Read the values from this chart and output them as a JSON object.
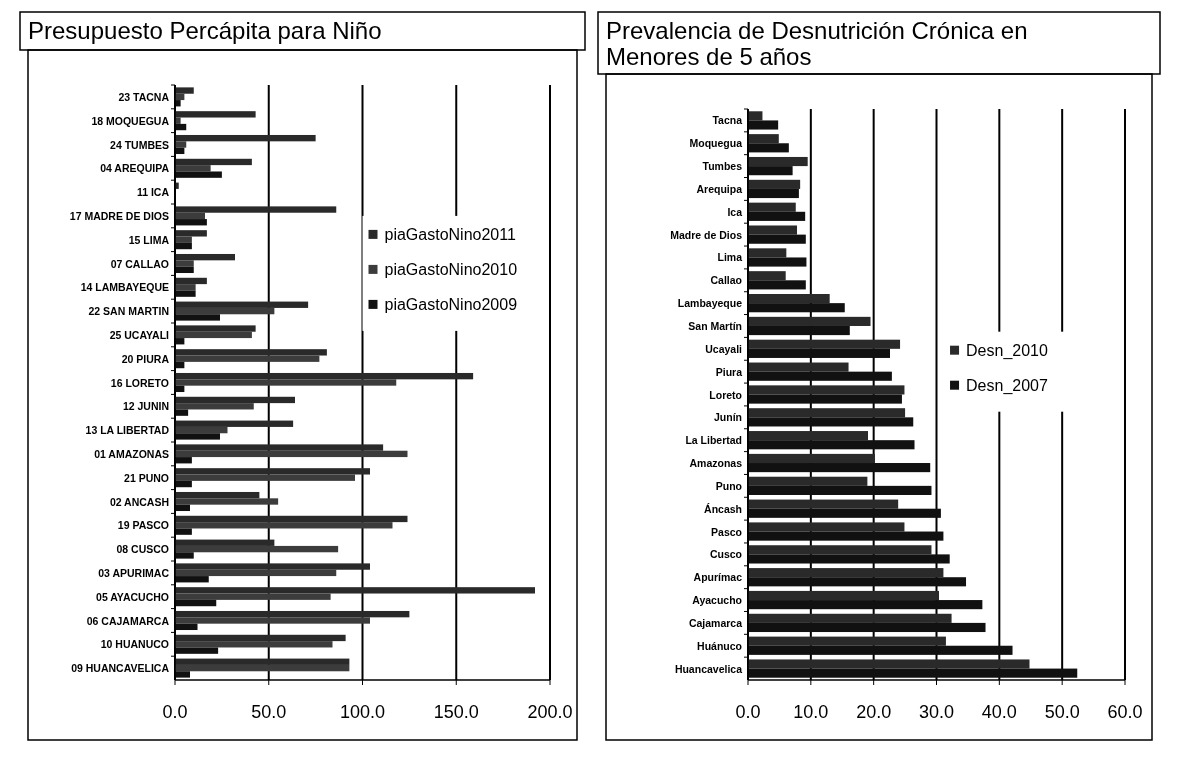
{
  "chart_data": [
    {
      "type": "bar",
      "orientation": "horizontal",
      "title": "Presupuesto Percápita para Niño",
      "categories": [
        "23 TACNA",
        "18 MOQUEGUA",
        "24 TUMBES",
        "04 AREQUIPA",
        "11 ICA",
        "17 MADRE DE DIOS",
        "15 LIMA",
        "07 CALLAO",
        "14 LAMBAYEQUE",
        "22 SAN MARTIN",
        "25 UCAYALI",
        "20 PIURA",
        "16 LORETO",
        "12 JUNIN",
        "13 LA LIBERTAD",
        "01 AMAZONAS",
        "21 PUNO",
        "02 ANCASH",
        "19 PASCO",
        "08 CUSCO",
        "03 APURIMAC",
        "05 AYACUCHO",
        "06 CAJAMARCA",
        "10 HUANUCO",
        "09 HUANCAVELICA"
      ],
      "series": [
        {
          "name": "piaGastoNino2011",
          "color": "#2a2a2a",
          "values": [
            10,
            43,
            75,
            41,
            2,
            86,
            17,
            32,
            17,
            71,
            43,
            81,
            159,
            64,
            63,
            111,
            104,
            45,
            124,
            53,
            104,
            192,
            125,
            91,
            93
          ]
        },
        {
          "name": "piaGastoNino2010",
          "color": "#3c3c3c",
          "values": [
            5,
            3,
            6,
            19,
            null,
            16,
            9,
            10,
            11,
            53,
            41,
            77,
            118,
            42,
            28,
            124,
            96,
            55,
            116,
            87,
            86,
            83,
            104,
            84,
            93
          ]
        },
        {
          "name": "piaGastoNino2009",
          "color": "#111111",
          "values": [
            3,
            6,
            5,
            25,
            null,
            17,
            9,
            10,
            11,
            24,
            5,
            5,
            5,
            7,
            24,
            9,
            9,
            8,
            9,
            10,
            18,
            22,
            12,
            23,
            8
          ]
        }
      ],
      "xlim": [
        0,
        200
      ],
      "xticks": [
        {
          "value": 0,
          "label": "0.0"
        },
        {
          "value": 50,
          "label": "50.0"
        },
        {
          "value": 100,
          "label": "100.0"
        },
        {
          "value": 150,
          "label": "150.0"
        },
        {
          "value": 200,
          "label": "200.0"
        }
      ],
      "grid": "x",
      "legend": "right"
    },
    {
      "type": "bar",
      "orientation": "horizontal",
      "title": "Prevalencia de Desnutrición Crónica en Menores de 5 años",
      "categories": [
        "Tacna",
        "Moquegua",
        "Tumbes",
        "Arequipa",
        "Ica",
        "Madre de Dios",
        "Lima",
        "Callao",
        "Lambayeque",
        "San Martín",
        "Ucayali",
        "Piura",
        "Loreto",
        "Junín",
        "La Libertad",
        "Amazonas",
        "Puno",
        "Áncash",
        "Pasco",
        "Cusco",
        "Apurímac",
        "Ayacucho",
        "Cajamarca",
        "Huánuco",
        "Huancavelica"
      ],
      "series": [
        {
          "name": "Desn_2010",
          "color": "#2a2a2a",
          "values": [
            2.3,
            4.9,
            9.5,
            8.3,
            7.6,
            7.8,
            6.1,
            6.0,
            13.0,
            19.5,
            24.2,
            16.0,
            24.9,
            25.0,
            19.1,
            20.2,
            19.0,
            23.9,
            24.9,
            29.2,
            31.1,
            30.4,
            32.4,
            31.5,
            44.8
          ]
        },
        {
          "name": "Desn_2007",
          "color": "#111111",
          "values": [
            4.8,
            6.5,
            7.1,
            8.1,
            9.1,
            9.2,
            9.3,
            9.2,
            15.4,
            16.2,
            22.6,
            22.9,
            24.5,
            26.3,
            26.5,
            29.0,
            29.2,
            30.7,
            31.1,
            32.1,
            34.7,
            37.3,
            37.8,
            42.1,
            52.4
          ]
        }
      ],
      "xlim": [
        0,
        60
      ],
      "xticks": [
        {
          "value": 0,
          "label": "0.0"
        },
        {
          "value": 10,
          "label": "10.0"
        },
        {
          "value": 20,
          "label": "20.0"
        },
        {
          "value": 30,
          "label": "30.0"
        },
        {
          "value": 40,
          "label": "40.0"
        },
        {
          "value": 50,
          "label": "50.0"
        },
        {
          "value": 60,
          "label": "60.0"
        }
      ],
      "grid": "x",
      "legend": "right"
    }
  ]
}
